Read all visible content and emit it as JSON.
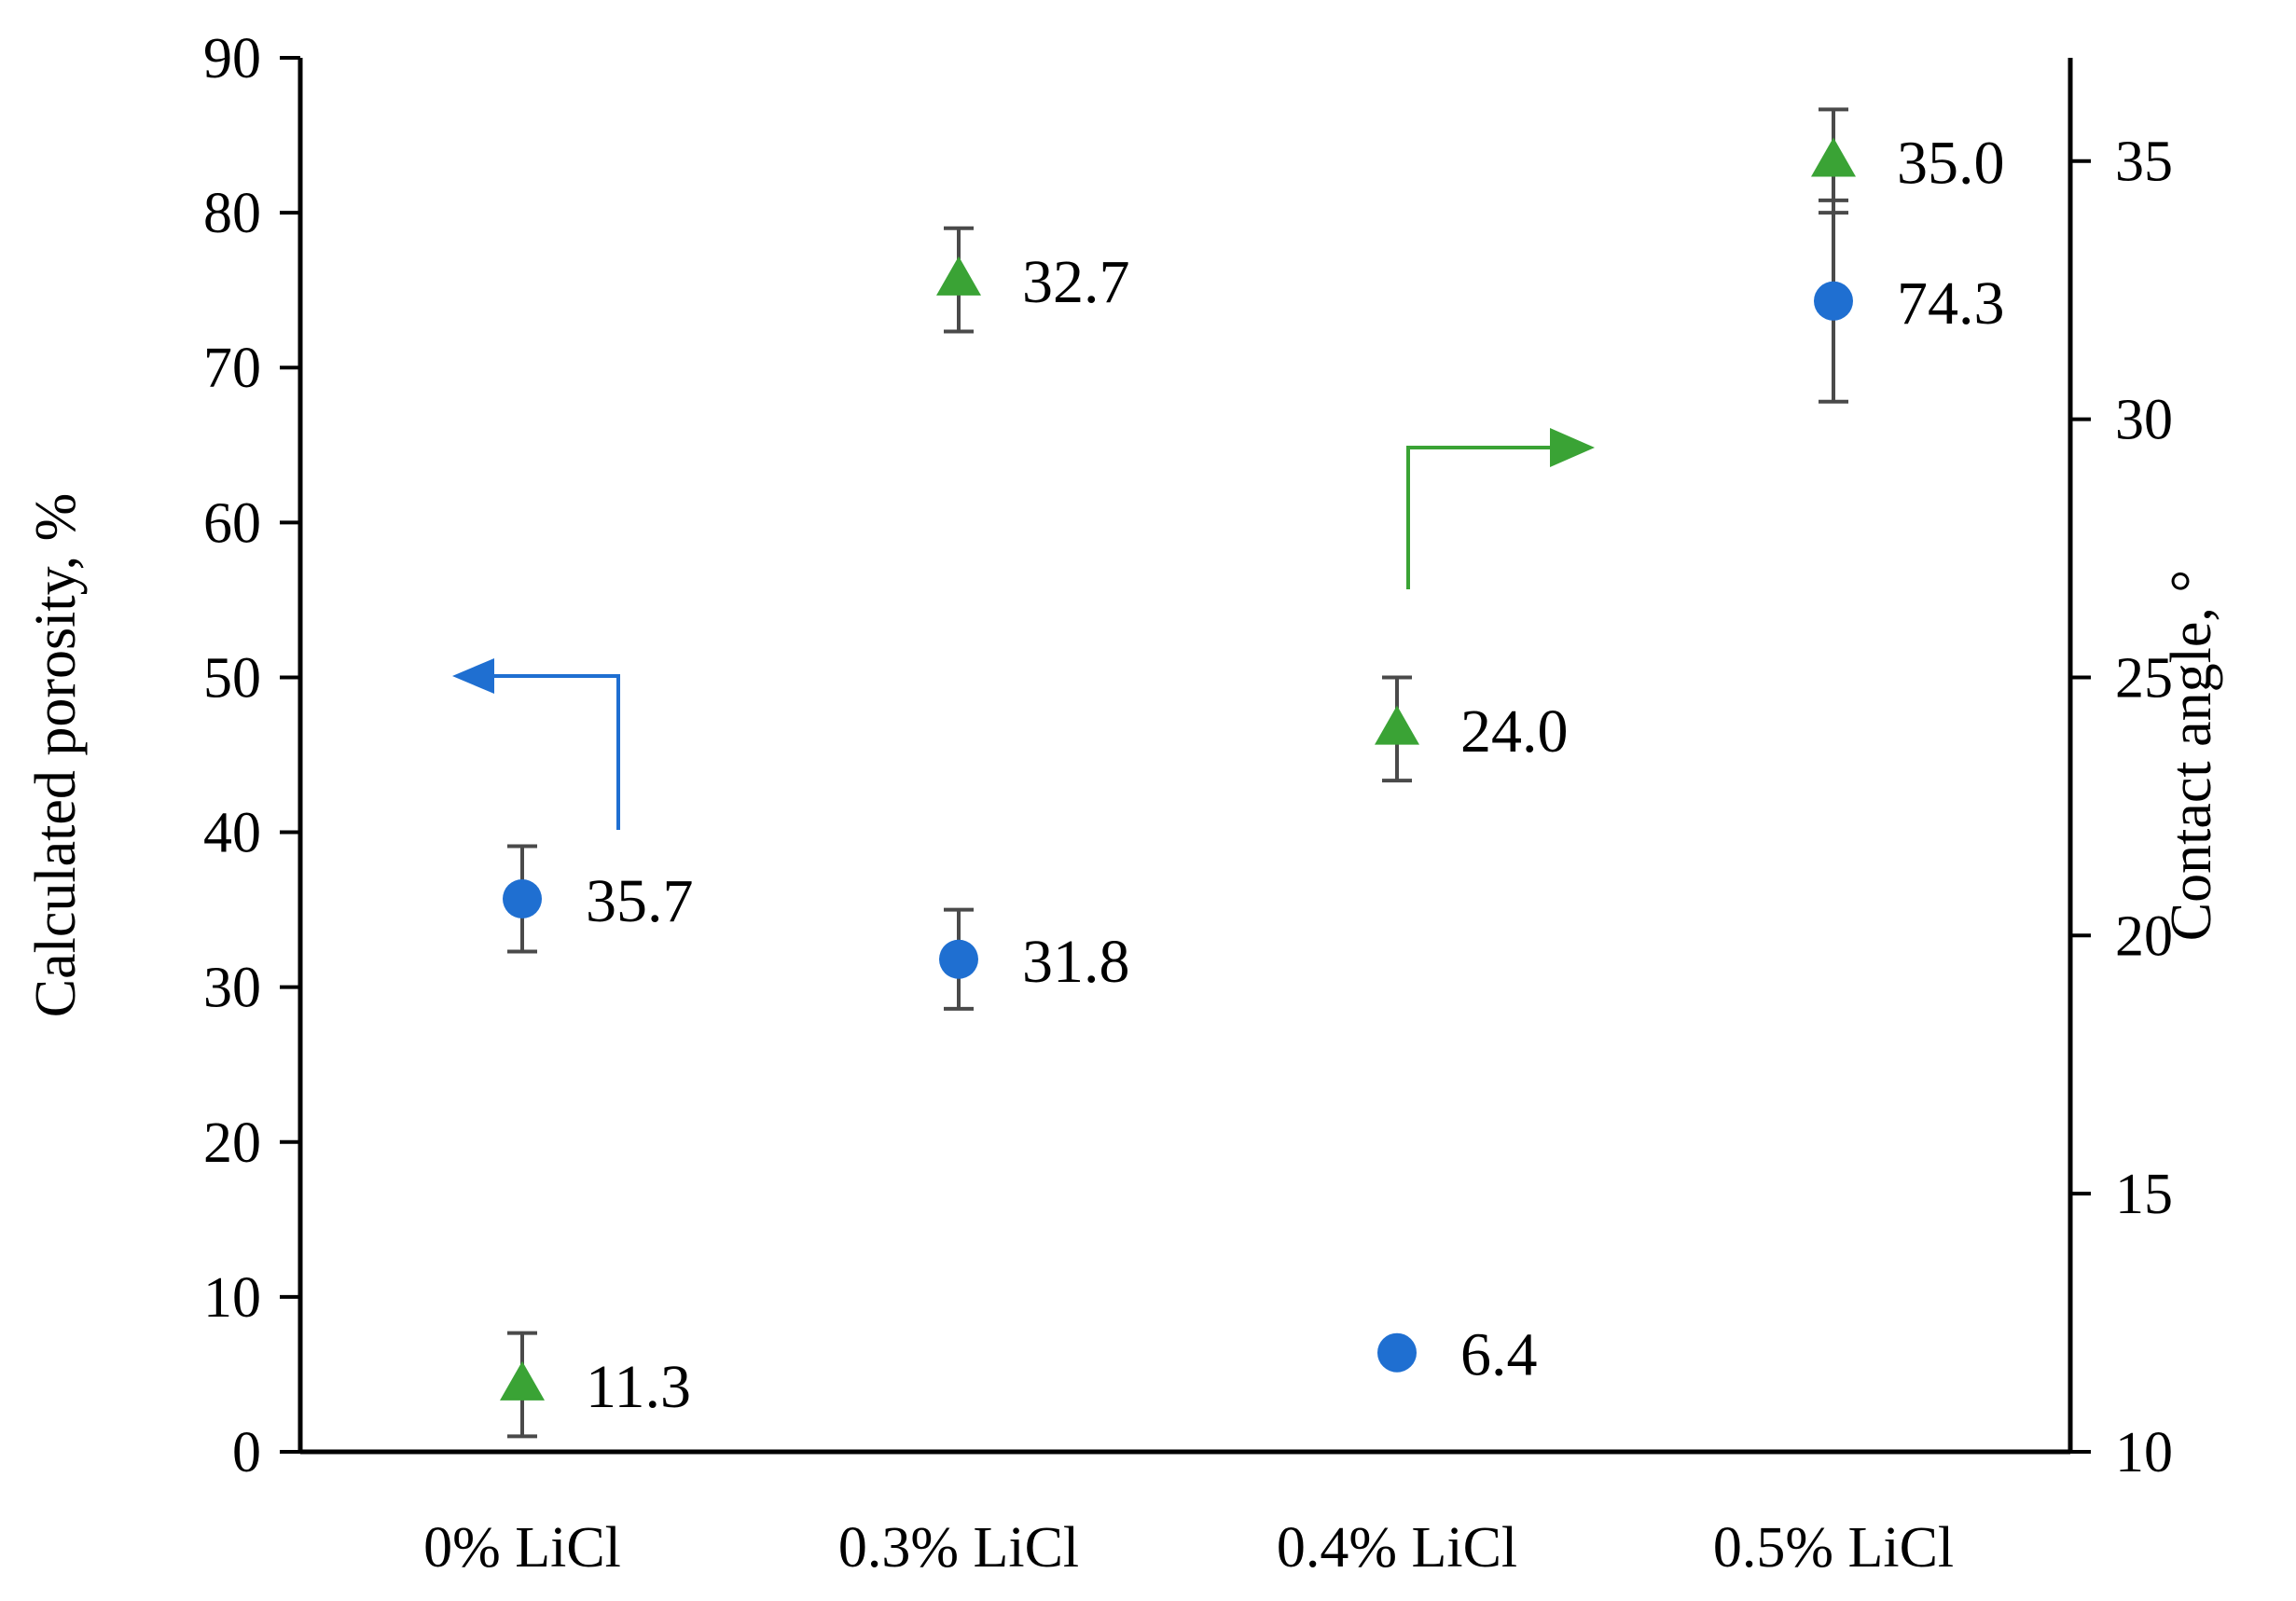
{
  "chart_data": {
    "type": "scatter",
    "categories": [
      "0% LiCl",
      "0.3% LiCl",
      "0.4% LiCl",
      "0.5% LiCl"
    ],
    "y_left": {
      "label": "Calculated porosity, %",
      "range": [
        0,
        90
      ],
      "ticks": [
        "0",
        "10",
        "20",
        "30",
        "40",
        "50",
        "60",
        "70",
        "80",
        "90"
      ]
    },
    "y_right": {
      "label": "Contact angle, °",
      "range": [
        10,
        37
      ],
      "ticks": [
        "10",
        "15",
        "20",
        "25",
        "30",
        "35"
      ]
    },
    "series": [
      {
        "axis": "left",
        "marker": "circle",
        "color": "#1f6fd1",
        "values": [
          35.7,
          31.8,
          6.4,
          74.3
        ],
        "labels": [
          "35.7",
          "31.8",
          "6.4",
          "74.3"
        ],
        "error": [
          3.4,
          3.2,
          null,
          6.5
        ]
      },
      {
        "axis": "right",
        "marker": "triangle",
        "color": "#3aa335",
        "values": [
          11.3,
          32.7,
          24.0,
          35.0
        ],
        "labels": [
          "11.3",
          "32.7",
          "24.0",
          "35.0"
        ],
        "error": [
          1.0,
          1.0,
          1.0,
          1.0
        ]
      }
    ],
    "annotations": [
      {
        "type": "arrow",
        "points_to": "left",
        "color": "#1f6fd1"
      },
      {
        "type": "arrow",
        "points_to": "right",
        "color": "#3aa335"
      }
    ],
    "grid": false,
    "legend": "none"
  }
}
